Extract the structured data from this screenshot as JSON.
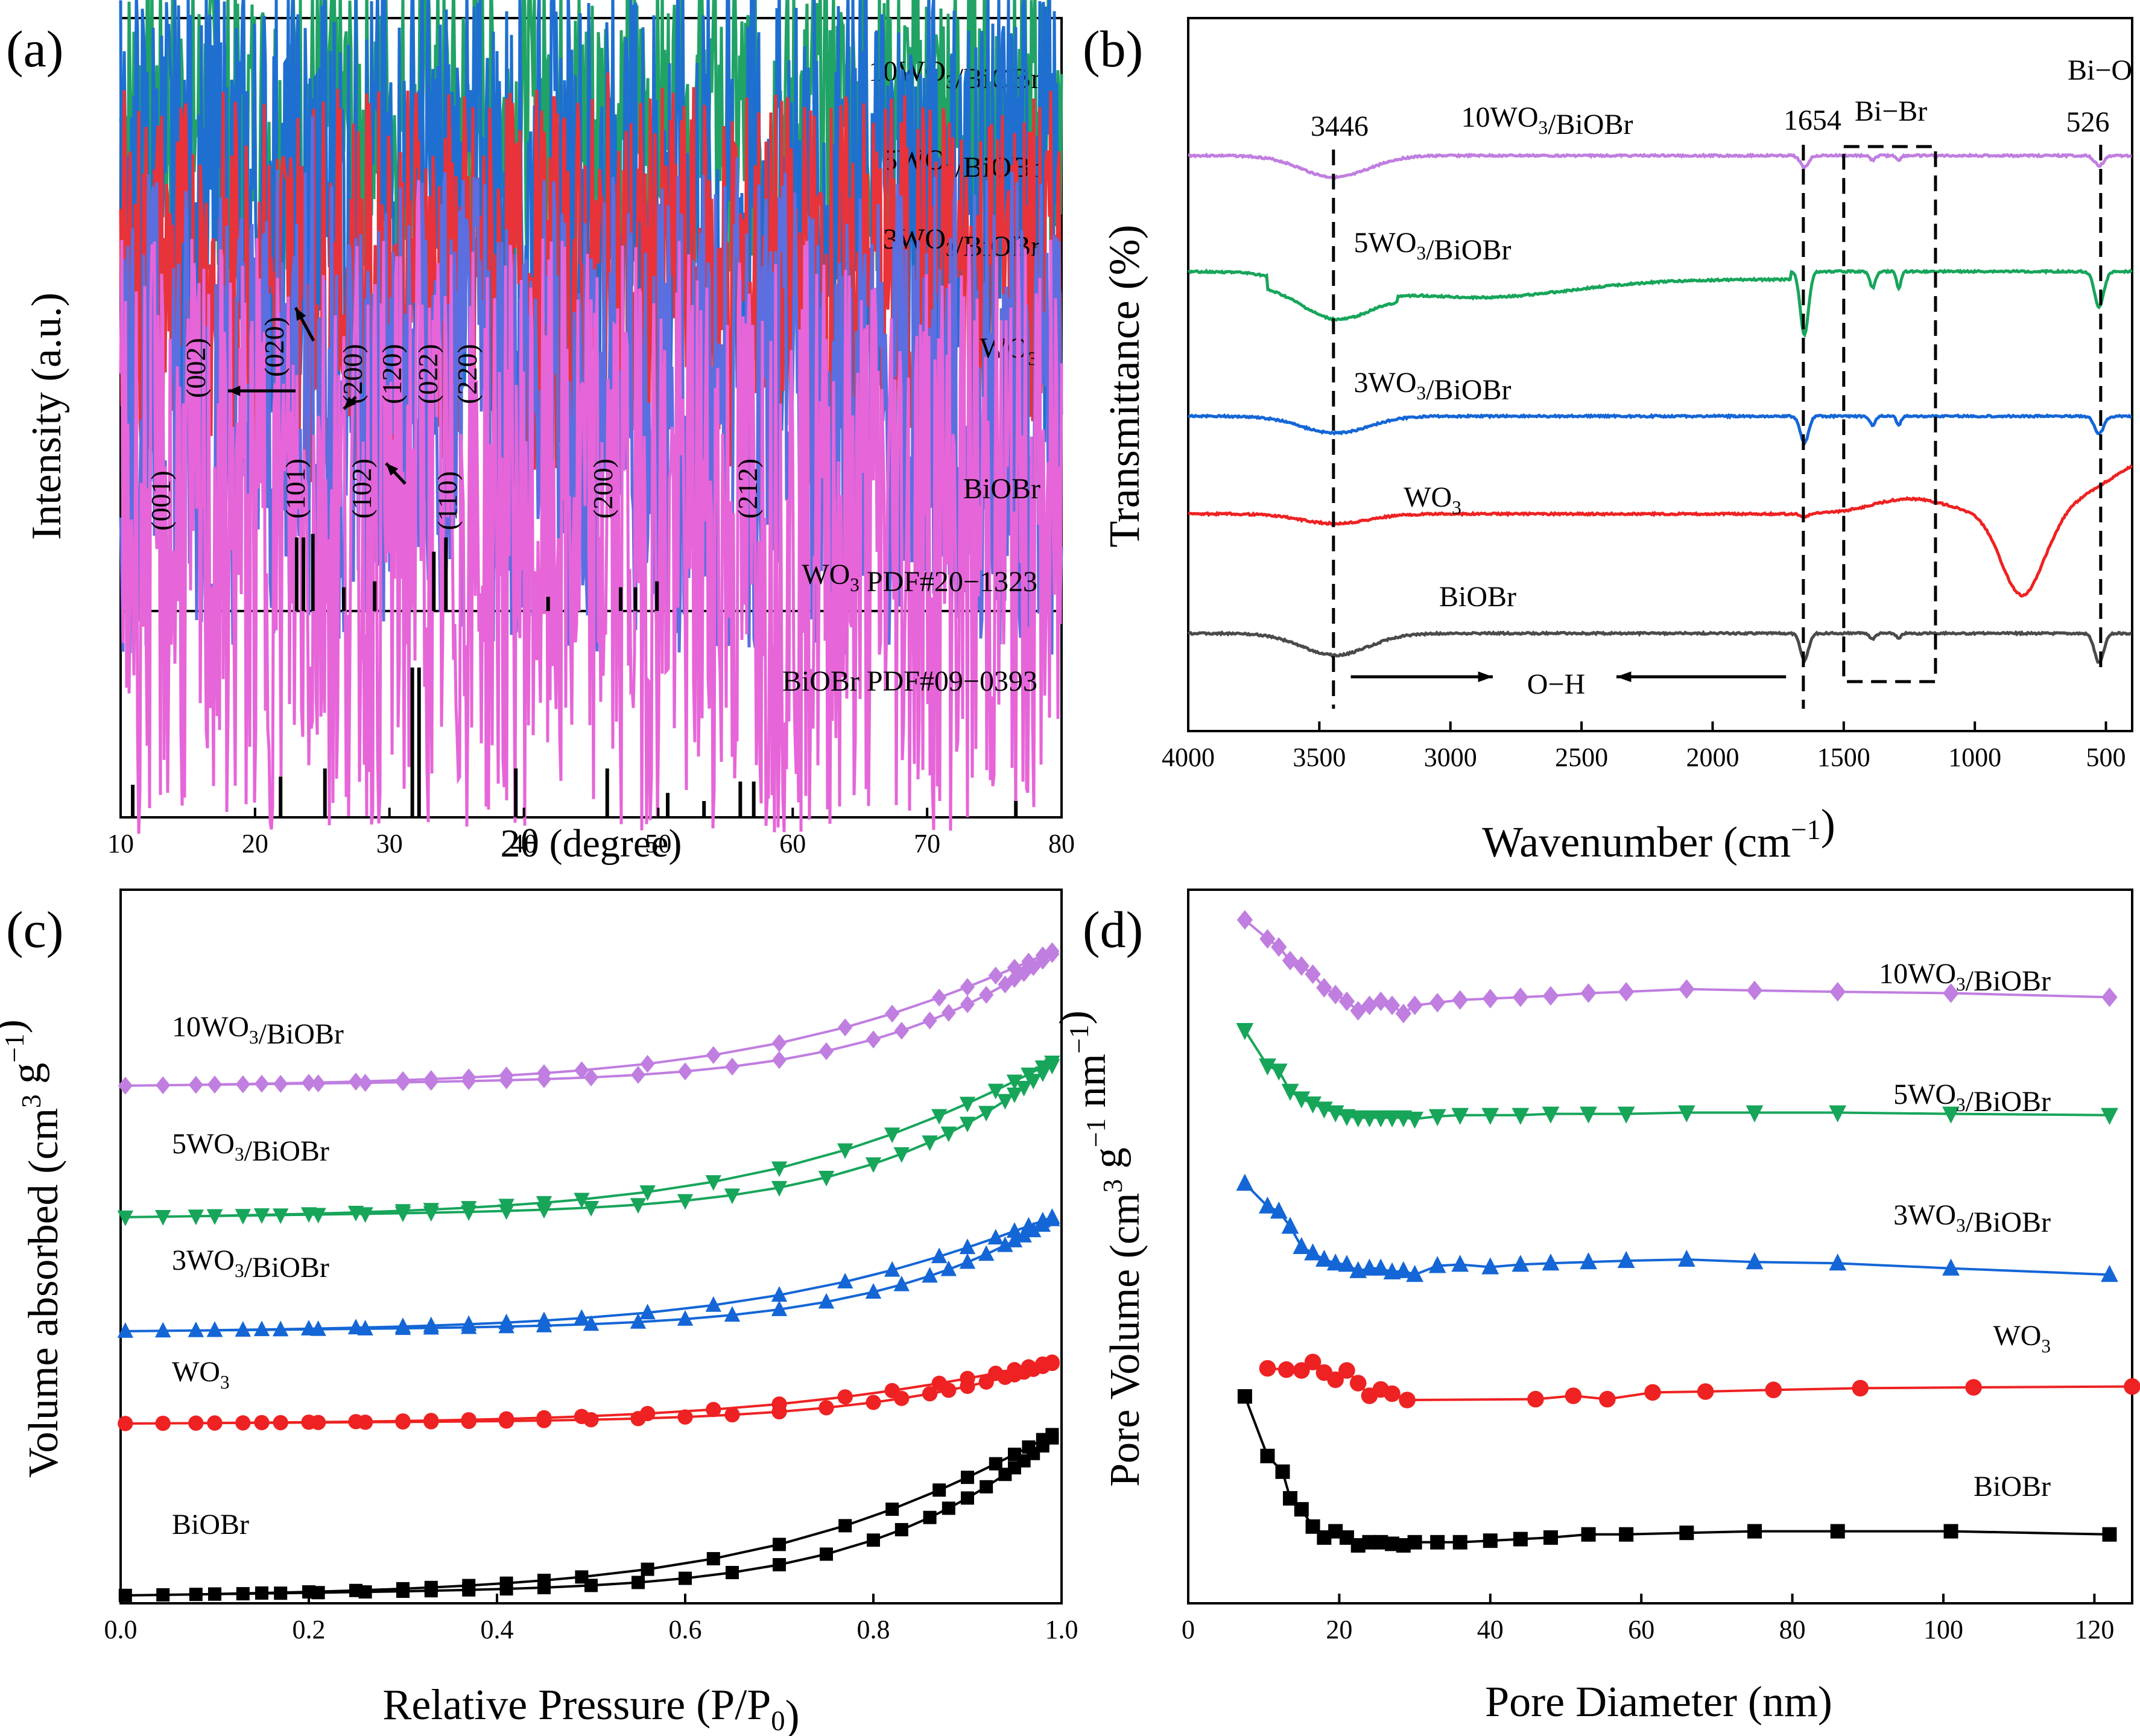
{
  "colors": {
    "10WO3/BiOBr_a": "#21a366",
    "5WO3/BiOBr_a": "#1f6fd1",
    "3WO3/BiOBr_a": "#e8333a",
    "WO3_a": "#5b6fe0",
    "BiOBr_a": "#e665d8",
    "purple": "#c07ee0",
    "green": "#17a55a",
    "blue": "#1466d6",
    "red": "#ee2222",
    "black": "#000000",
    "gray": "#4a4a4a",
    "bluedark": "#0a16e0"
  },
  "chart_data": [
    {
      "panel": "(a)",
      "type": "line",
      "xlabel": "2θ (degree)",
      "ylabel": "Intensity (a.u.)",
      "xlim": [
        10,
        80
      ],
      "xticks": [
        10,
        20,
        30,
        40,
        50,
        60,
        70,
        80
      ],
      "series": [
        {
          "name": "10WO3/BiOBr",
          "label_main": "10WO",
          "label_sub": "3",
          "label_tail": "/BiOBr",
          "color": "#21a366",
          "peaks": [
            [
              23.1,
              0.15
            ],
            [
              24.1,
              0.14
            ],
            [
              25.3,
              0.35
            ],
            [
              29.1,
              0.1
            ],
            [
              31.8,
              0.5
            ],
            [
              32.3,
              1.0
            ],
            [
              33.2,
              0.25
            ],
            [
              46.3,
              0.55
            ],
            [
              53.5,
              0.12
            ],
            [
              57.3,
              0.3
            ]
          ]
        },
        {
          "name": "5WO3/BiOBr",
          "label_main": "5WO",
          "label_sub": "3",
          "label_tail": "/BiOBr",
          "color": "#1f6fd1",
          "peaks": [
            [
              25.2,
              0.3
            ],
            [
              31.8,
              0.7
            ],
            [
              32.2,
              1.0
            ],
            [
              46.3,
              0.5
            ],
            [
              57.0,
              0.3
            ]
          ]
        },
        {
          "name": "3WO3/BiOBr",
          "label_main": "3WO",
          "label_sub": "3",
          "label_tail": "/BiOBr",
          "color": "#e8333a",
          "peaks": [
            [
              25.3,
              0.3
            ],
            [
              31.8,
              0.6
            ],
            [
              32.3,
              1.0
            ],
            [
              39.5,
              0.1
            ],
            [
              46.4,
              0.35
            ],
            [
              57.3,
              0.2
            ]
          ]
        },
        {
          "name": "WO3",
          "label_main": "WO",
          "label_sub": "3",
          "label_tail": "",
          "color": "#5b6fe0",
          "peaks": [
            [
              23.1,
              1.0
            ],
            [
              23.6,
              0.8
            ],
            [
              24.3,
              0.85
            ],
            [
              26.6,
              0.1
            ],
            [
              28.9,
              0.15
            ],
            [
              33.3,
              0.3
            ],
            [
              34.1,
              0.45
            ],
            [
              41.8,
              0.1
            ],
            [
              47.3,
              0.1
            ],
            [
              48.2,
              0.08
            ],
            [
              50.1,
              0.2
            ],
            [
              53.5,
              0.1
            ],
            [
              55.9,
              0.15
            ]
          ]
        },
        {
          "name": "BiOBr",
          "label_main": "BiOBr",
          "label_sub": "",
          "label_tail": "",
          "color": "#e665d8",
          "peaks": [
            [
              10.9,
              0.08
            ],
            [
              21.9,
              0.05
            ],
            [
              25.2,
              0.3
            ],
            [
              31.7,
              0.6
            ],
            [
              32.2,
              1.0
            ],
            [
              39.4,
              0.1
            ],
            [
              46.2,
              0.35
            ],
            [
              50.6,
              0.05
            ],
            [
              53.4,
              0.07
            ],
            [
              56.9,
              0.22
            ],
            [
              57.3,
              0.12
            ],
            [
              67.5,
              0.05
            ],
            [
              76.6,
              0.04
            ]
          ]
        }
      ],
      "hkl_wo3": [
        "(002)",
        "(020)",
        "(200)",
        "(120)",
        "(022)",
        "(220)"
      ],
      "hkl_biobr": [
        "(001)",
        "(101)",
        "(102)",
        "(110)",
        "(200)",
        "(212)"
      ],
      "ref_wo3": {
        "label": "WO3 PDF#20−1323",
        "label_main": "WO",
        "label_sub": "3",
        "label_tail": " PDF#20−1323",
        "lines": [
          [
            23.1,
            0.62
          ],
          [
            23.6,
            0.62
          ],
          [
            24.3,
            0.65
          ],
          [
            26.6,
            0.2
          ],
          [
            28.9,
            0.25
          ],
          [
            33.3,
            0.5
          ],
          [
            34.2,
            0.62
          ],
          [
            41.8,
            0.12
          ],
          [
            47.2,
            0.2
          ],
          [
            48.3,
            0.2
          ],
          [
            49.9,
            0.25
          ]
        ]
      },
      "ref_biobr": {
        "label": "BiOBr PDF#09−0393",
        "lines": [
          [
            10.9,
            0.2
          ],
          [
            21.9,
            0.25
          ],
          [
            25.2,
            0.3
          ],
          [
            31.7,
            0.92
          ],
          [
            32.2,
            0.92
          ],
          [
            39.4,
            0.3
          ],
          [
            46.2,
            0.3
          ],
          [
            50.7,
            0.15
          ],
          [
            53.4,
            0.1
          ],
          [
            56.1,
            0.22
          ],
          [
            57.1,
            0.22
          ],
          [
            76.6,
            0.1
          ]
        ]
      }
    },
    {
      "panel": "(b)",
      "type": "line",
      "xlabel": "Wavenumber (cm−1)",
      "xlabel_main": "Wavenumber (cm",
      "xlabel_sup": "−1",
      "xlabel_tail": ")",
      "ylabel": "Transmittance (%)",
      "xlim": [
        4000,
        400
      ],
      "xticks": [
        4000,
        3500,
        3000,
        2500,
        2000,
        1500,
        1000,
        500
      ],
      "annotations": {
        "a3446": "3446",
        "a1654": "1654",
        "bibr": "Bi−Br",
        "bio": "Bi−O",
        "a526": "526",
        "oh": "O−H"
      },
      "series": [
        {
          "name": "10WO3/BiOBr",
          "label_main": "10WO",
          "label_sub": "3",
          "label_tail": "/BiOBr",
          "color": "#c07ee0"
        },
        {
          "name": "5WO3/BiOBr",
          "label_main": "5WO",
          "label_sub": "3",
          "label_tail": "/BiOBr",
          "color": "#17a55a"
        },
        {
          "name": "3WO3/BiOBr",
          "label_main": "3WO",
          "label_sub": "3",
          "label_tail": "/BiOBr",
          "color": "#1466d6"
        },
        {
          "name": "WO3",
          "label_main": "WO",
          "label_sub": "3",
          "label_tail": "",
          "color": "#ee2222"
        },
        {
          "name": "BiOBr",
          "label_main": "BiOBr",
          "label_sub": "",
          "label_tail": "",
          "color": "#4a4a4a"
        }
      ]
    },
    {
      "panel": "(c)",
      "type": "line",
      "xlabel": "Relative Pressure (P/P0)",
      "xlabel_main": "Relative Pressure (P/P",
      "xlabel_sub": "0",
      "xlabel_tail": ")",
      "ylabel": "Volume absorbed (cm3 g−1)",
      "ylabel_main": "Volume absorbed (cm",
      "ylabel_sup1": "3",
      "ylabel_mid": " g",
      "ylabel_sup2": "−1",
      "ylabel_tail": ")",
      "xlim": [
        0,
        1.0
      ],
      "xticks": [
        0.0,
        0.2,
        0.4,
        0.6,
        0.8,
        1.0
      ],
      "xticklabels": [
        "0.0",
        "0.2",
        "0.4",
        "0.6",
        "0.8",
        "1.0"
      ],
      "series": [
        {
          "name": "10WO3/BiOBr",
          "label_main": "10WO",
          "label_sub": "3",
          "label_tail": "/BiOBr",
          "color": "#c07ee0",
          "marker": "diamond",
          "rise": 0.22,
          "gap": 0.05
        },
        {
          "name": "5WO3/BiOBr",
          "label_main": "5WO",
          "label_sub": "3",
          "label_tail": "/BiOBr",
          "color": "#17a55a",
          "marker": "tri-down",
          "rise": 0.24,
          "gap": 0.045
        },
        {
          "name": "3WO3/BiOBr",
          "label_main": "3WO",
          "label_sub": "3",
          "label_tail": "/BiOBr",
          "color": "#1466d6",
          "marker": "tri-up",
          "rise": 0.18,
          "gap": 0.045
        },
        {
          "name": "WO3",
          "label_main": "WO",
          "label_sub": "3",
          "label_tail": "",
          "color": "#ee2222",
          "marker": "circle",
          "rise": 0.08,
          "gap": 0.02
        },
        {
          "name": "BiOBr",
          "label_main": "BiOBr",
          "label_sub": "",
          "label_tail": "",
          "color": "#000000",
          "marker": "square",
          "rise": 0.26,
          "gap": 0.05
        }
      ]
    },
    {
      "panel": "(d)",
      "type": "line",
      "xlabel": "Pore Diameter (nm)",
      "ylabel": "Pore Volume (cm3 g−1 nm−1)",
      "ylabel_main": "Pore Volume (cm",
      "ylabel_sup1": "3",
      "ylabel_mid": " g",
      "ylabel_sup2": "−1",
      "ylabel_mid2": " nm",
      "ylabel_sup3": "−1",
      "ylabel_tail": ")",
      "xlim": [
        0,
        125
      ],
      "xticks": [
        0,
        20,
        40,
        60,
        80,
        100,
        120
      ],
      "series": [
        {
          "name": "10WO3/BiOBr",
          "label_main": "10WO",
          "label_sub": "3",
          "label_tail": "/BiOBr",
          "color": "#c07ee0",
          "marker": "diamond",
          "x": [
            7.5,
            10.5,
            12,
            13.5,
            15,
            16.5,
            18,
            19.5,
            21,
            22.5,
            24,
            25.5,
            27,
            28.5,
            30,
            33,
            36,
            40,
            44,
            48,
            53,
            58,
            66,
            75,
            86,
            101,
            122
          ],
          "y": [
            1.0,
            0.86,
            0.8,
            0.7,
            0.66,
            0.6,
            0.5,
            0.45,
            0.4,
            0.33,
            0.37,
            0.4,
            0.37,
            0.31,
            0.37,
            0.39,
            0.41,
            0.42,
            0.43,
            0.44,
            0.46,
            0.47,
            0.49,
            0.48,
            0.47,
            0.46,
            0.43
          ]
        },
        {
          "name": "5WO3/BiOBr",
          "label_main": "5WO",
          "label_sub": "3",
          "label_tail": "/BiOBr",
          "color": "#17a55a",
          "marker": "tri-down",
          "x": [
            7.5,
            10.5,
            12,
            13.5,
            15,
            16.5,
            18,
            19.5,
            21,
            22.5,
            24,
            25.5,
            27,
            28.5,
            30,
            33,
            36,
            40,
            44,
            48,
            53,
            58,
            66,
            75,
            86,
            101,
            122
          ],
          "y": [
            1.0,
            0.72,
            0.68,
            0.52,
            0.46,
            0.42,
            0.38,
            0.35,
            0.32,
            0.31,
            0.31,
            0.31,
            0.31,
            0.31,
            0.3,
            0.32,
            0.33,
            0.33,
            0.33,
            0.34,
            0.34,
            0.34,
            0.35,
            0.35,
            0.35,
            0.34,
            0.33
          ]
        },
        {
          "name": "3WO3/BiOBr",
          "label_main": "3WO",
          "label_sub": "3",
          "label_tail": "/BiOBr",
          "color": "#1466d6",
          "marker": "tri-up",
          "x": [
            7.5,
            10.5,
            12,
            13.5,
            15,
            16.5,
            18,
            19.5,
            21,
            22.5,
            24,
            25.5,
            27,
            28.5,
            30,
            33,
            36,
            40,
            44,
            48,
            53,
            58,
            66,
            75,
            86,
            101,
            122
          ],
          "y": [
            1.0,
            0.82,
            0.78,
            0.66,
            0.5,
            0.45,
            0.4,
            0.37,
            0.36,
            0.31,
            0.33,
            0.33,
            0.3,
            0.31,
            0.28,
            0.35,
            0.36,
            0.34,
            0.36,
            0.37,
            0.38,
            0.39,
            0.4,
            0.38,
            0.37,
            0.33,
            0.28
          ]
        },
        {
          "name": "WO3",
          "label_main": "WO",
          "label_sub": "3",
          "label_tail": "",
          "color": "#ee2222",
          "marker": "circle",
          "x": [
            10.5,
            13,
            15,
            16.5,
            18,
            19.5,
            21,
            22.5,
            24,
            25.5,
            27,
            29,
            46,
            51,
            55.5,
            61.5,
            68.5,
            77.5,
            89,
            104,
            125
          ],
          "y": [
            0.85,
            0.82,
            0.8,
            1.0,
            0.75,
            0.58,
            0.8,
            0.5,
            0.2,
            0.35,
            0.25,
            0.1,
            0.12,
            0.2,
            0.12,
            0.28,
            0.3,
            0.34,
            0.38,
            0.4,
            0.42
          ]
        },
        {
          "name": "BiOBr",
          "label_main": "BiOBr",
          "label_sub": "",
          "label_tail": "",
          "color": "#000000",
          "marker": "square",
          "x": [
            7.5,
            10.5,
            12.5,
            13.5,
            15,
            16.5,
            18,
            19.5,
            21,
            22.5,
            24,
            25.5,
            27,
            28.5,
            30,
            33,
            36,
            40,
            44,
            48,
            53,
            58,
            66,
            75,
            86,
            101,
            122
          ],
          "y": [
            1.0,
            0.62,
            0.52,
            0.35,
            0.28,
            0.17,
            0.1,
            0.14,
            0.1,
            0.05,
            0.07,
            0.07,
            0.06,
            0.05,
            0.07,
            0.07,
            0.07,
            0.08,
            0.09,
            0.1,
            0.12,
            0.12,
            0.13,
            0.14,
            0.14,
            0.14,
            0.12
          ]
        }
      ]
    }
  ]
}
